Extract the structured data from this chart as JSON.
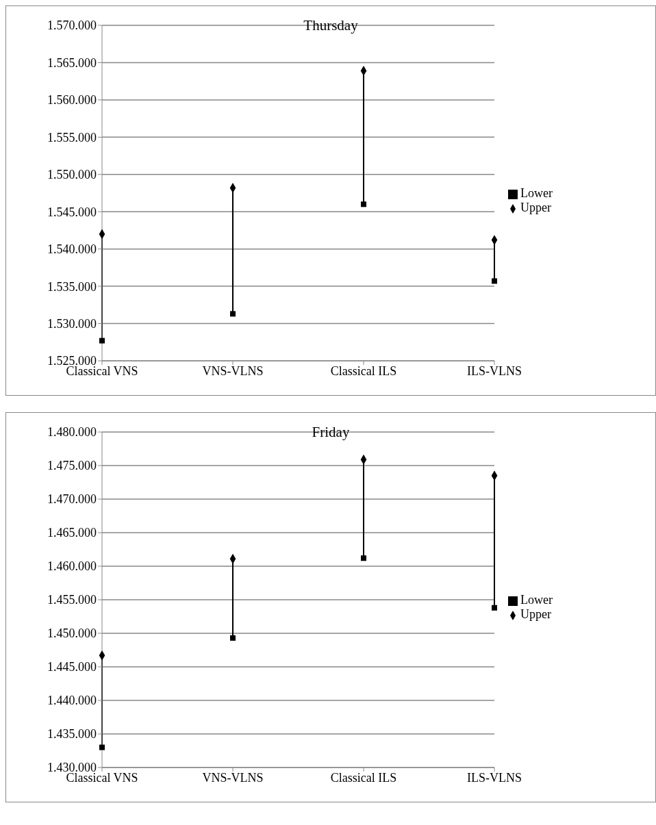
{
  "chart_data": [
    {
      "type": "scatter",
      "title": "Thursday",
      "categories": [
        "Classical VNS",
        "VNS-VLNS",
        "Classical ILS",
        "ILS-VLNS"
      ],
      "series": [
        {
          "name": "Upper",
          "color": "#000000",
          "marker": "diamond",
          "values": [
            1542000,
            1548200,
            1563900,
            1541200
          ]
        },
        {
          "name": "Lower",
          "color": "#000000",
          "marker": "square",
          "values": [
            1527700,
            1531300,
            1546000,
            1535700
          ]
        }
      ],
      "ylim": [
        1525000,
        1570000
      ],
      "yticks": [
        {
          "value": 1525000,
          "label": "1.525.000"
        },
        {
          "value": 1530000,
          "label": "1.530.000"
        },
        {
          "value": 1535000,
          "label": "1.535.000"
        },
        {
          "value": 1540000,
          "label": "1.540.000"
        },
        {
          "value": 1545000,
          "label": "1.545.000"
        },
        {
          "value": 1550000,
          "label": "1.550.000"
        },
        {
          "value": 1555000,
          "label": "1.555.000"
        },
        {
          "value": 1560000,
          "label": "1.560.000"
        },
        {
          "value": 1565000,
          "label": "1.565.000"
        },
        {
          "value": 1570000,
          "label": "1.570.000"
        }
      ],
      "grid": "y",
      "legend": "right"
    },
    {
      "type": "scatter",
      "title": "Friday",
      "categories": [
        "Classical VNS",
        "VNS-VLNS",
        "Classical ILS",
        "ILS-VLNS"
      ],
      "series": [
        {
          "name": "Upper",
          "color": "#000000",
          "marker": "diamond",
          "values": [
            1446700,
            1461100,
            1475900,
            1473500
          ]
        },
        {
          "name": "Lower",
          "color": "#000000",
          "marker": "square",
          "values": [
            1433000,
            1449300,
            1461200,
            1453800
          ]
        }
      ],
      "ylim": [
        1430000,
        1480000
      ],
      "yticks": [
        {
          "value": 1430000,
          "label": "1.430.000"
        },
        {
          "value": 1435000,
          "label": "1.435.000"
        },
        {
          "value": 1440000,
          "label": "1.440.000"
        },
        {
          "value": 1445000,
          "label": "1.445.000"
        },
        {
          "value": 1450000,
          "label": "1.450.000"
        },
        {
          "value": 1455000,
          "label": "1.455.000"
        },
        {
          "value": 1460000,
          "label": "1.460.000"
        },
        {
          "value": 1465000,
          "label": "1.465.000"
        },
        {
          "value": 1470000,
          "label": "1.470.000"
        },
        {
          "value": 1475000,
          "label": "1.475.000"
        },
        {
          "value": 1480000,
          "label": "1.480.000"
        }
      ],
      "grid": "y",
      "legend": "right"
    }
  ]
}
